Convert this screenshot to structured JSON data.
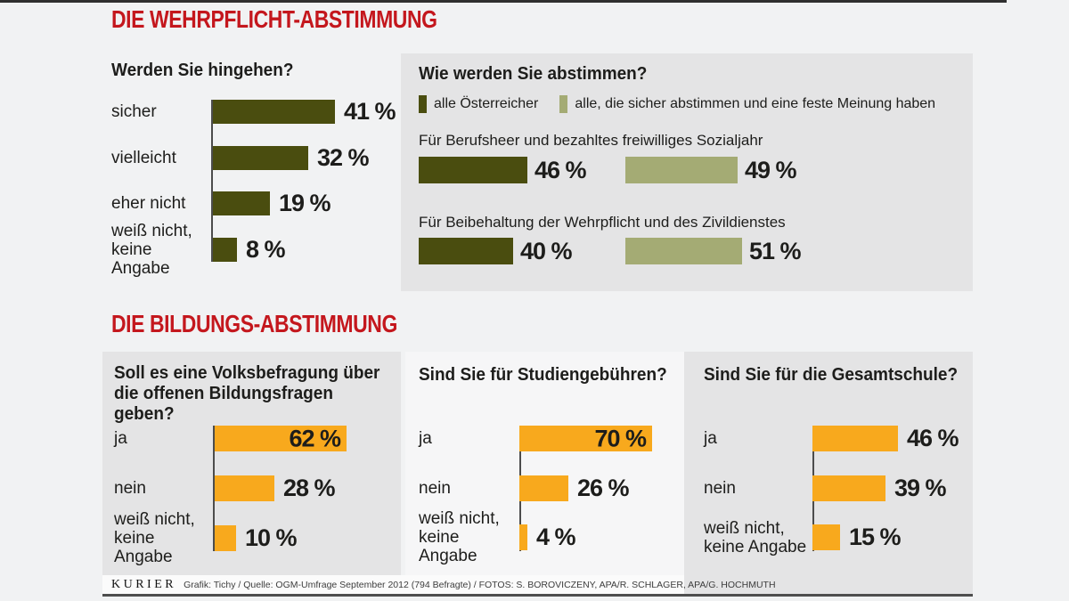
{
  "section1": {
    "title": "DIE WEHRPFLICHT-ABSTIMMUNG"
  },
  "section2": {
    "title": "DIE BILDUNGS-ABSTIMMUNG"
  },
  "colors": {
    "accent_red": "#c4171d",
    "olive_dark": "#4a4d0f",
    "olive_light": "#a4ab74",
    "orange": "#f8a91d",
    "panel_gray": "#e4e4e5",
    "ink": "#1d1d1b"
  },
  "chart_data": [
    {
      "id": "hingehen",
      "type": "bar",
      "title": "Werden Sie hingehen?",
      "unit": "%",
      "categories": [
        "sicher",
        "vielleicht",
        "eher nicht",
        "weiß nicht,\nkeine Angabe"
      ],
      "values": [
        41,
        32,
        19,
        8
      ]
    },
    {
      "id": "abstimmen",
      "type": "bar",
      "title": "Wie werden Sie abstimmen?",
      "unit": "%",
      "legend": [
        "alle Österreicher",
        "alle, die sicher abstimmen und eine feste Meinung haben"
      ],
      "groups": [
        {
          "label": "Für Berufsheer und bezahltes freiwilliges Sozialjahr",
          "values": [
            46,
            49
          ]
        },
        {
          "label": "Für Beibehaltung der Wehrpflicht und des Zivildienstes",
          "values": [
            40,
            51
          ]
        }
      ]
    },
    {
      "id": "volksbefragung",
      "type": "bar",
      "title": "Soll es eine Volksbefragung über\ndie offenen Bildungsfragen geben?",
      "unit": "%",
      "categories": [
        "ja",
        "nein",
        "weiß nicht,\nkeine Angabe"
      ],
      "values": [
        62,
        28,
        10
      ]
    },
    {
      "id": "studiengebuehren",
      "type": "bar",
      "title": "Sind Sie für Studiengebühren?",
      "unit": "%",
      "categories": [
        "ja",
        "nein",
        "weiß nicht,\nkeine Angabe"
      ],
      "values": [
        70,
        26,
        4
      ]
    },
    {
      "id": "gesamtschule",
      "type": "bar",
      "title": "Sind Sie für die Gesamtschule?",
      "unit": "%",
      "categories": [
        "ja",
        "nein",
        "weiß nicht,\nkeine Angabe"
      ],
      "values": [
        46,
        39,
        15
      ]
    }
  ],
  "footer": {
    "brand": "KURIER",
    "credits": "Grafik: Tichy / Quelle: OGM-Umfrage September 2012 (794 Befragte) / FOTOS: S. BOROVICZENY, APA/R. SCHLAGER, APA/G. HOCHMUTH"
  }
}
